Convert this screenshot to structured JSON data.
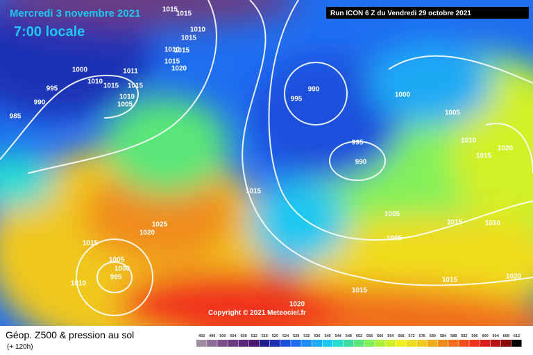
{
  "header": {
    "date": "Mercredi 3 novembre 2021",
    "time": "7:00 locale",
    "run": "Run ICON 6 Z du Vendredi 29 octobre 2021"
  },
  "copyright": "Copyright © 2021 Meteociel.fr",
  "footer": {
    "title": "Géop. Z500 & pression au sol",
    "subtitle": "(+ 120h)"
  },
  "isobar_labels": [
    "1015",
    "1015",
    "1010",
    "1015",
    "1010",
    "1015",
    "1015",
    "1020",
    "1000",
    "995",
    "1010",
    "1015",
    "1011",
    "1015",
    "1010",
    "1005",
    "990",
    "985",
    "990",
    "995",
    "1000",
    "1005",
    "995",
    "990",
    "1010",
    "1020",
    "1015",
    "1015",
    "1005",
    "1005",
    "1015",
    "1010",
    "1025",
    "1020",
    "1015",
    "1005",
    "1000",
    "995",
    "1010",
    "1015",
    "1020",
    "1015",
    "1020"
  ],
  "legend": {
    "values": [
      "492",
      "496",
      "500",
      "504",
      "508",
      "512",
      "516",
      "520",
      "524",
      "528",
      "532",
      "536",
      "540",
      "544",
      "548",
      "552",
      "556",
      "560",
      "564",
      "568",
      "572",
      "576",
      "580",
      "584",
      "588",
      "592",
      "596",
      "600",
      "604",
      "608",
      "612"
    ],
    "colors": [
      "#a08ca0",
      "#8c6e96",
      "#7a508c",
      "#6a3c82",
      "#5a2878",
      "#4a1a6e",
      "#1e1e8c",
      "#1e32b4",
      "#1e50dc",
      "#1e6ef0",
      "#1e8cf5",
      "#1eaaf5",
      "#1ec8f0",
      "#28dcd2",
      "#3cdca0",
      "#5ae678",
      "#82f05a",
      "#aaf03c",
      "#d2f028",
      "#f0f01e",
      "#f0dc1e",
      "#f0c81e",
      "#f0aa1e",
      "#f08c1e",
      "#f06e1e",
      "#f0501e",
      "#f0321e",
      "#dc1e1e",
      "#b41414",
      "#8c0a0a",
      "#000000"
    ]
  }
}
